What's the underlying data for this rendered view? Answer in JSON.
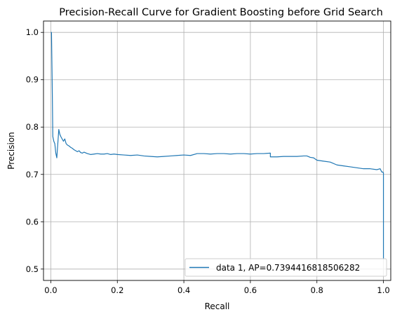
{
  "chart_data": {
    "type": "line",
    "title": "Precision-Recall Curve for Gradient Boosting before Grid Search",
    "xlabel": "Recall",
    "ylabel": "Precision",
    "xlim": [
      -0.022,
      1.022
    ],
    "ylim": [
      0.476,
      1.024
    ],
    "grid": true,
    "legend_position": "bottom-right",
    "x_ticks": [
      0.0,
      0.2,
      0.4,
      0.6,
      0.8,
      1.0
    ],
    "x_tick_labels": [
      "0.0",
      "0.2",
      "0.4",
      "0.6",
      "0.8",
      "1.0"
    ],
    "y_ticks": [
      0.5,
      0.6,
      0.7,
      0.8,
      0.9,
      1.0
    ],
    "y_tick_labels": [
      "0.5",
      "0.6",
      "0.7",
      "0.8",
      "0.9",
      "1.0"
    ],
    "colors": {
      "series": "#1f77b4",
      "grid": "#b0b0b0"
    },
    "series": [
      {
        "name": "data 1, AP=0.7394416818506282",
        "x": [
          0.0,
          0.002,
          0.004,
          0.006,
          0.009,
          0.012,
          0.015,
          0.018,
          0.021,
          0.024,
          0.027,
          0.03,
          0.034,
          0.038,
          0.042,
          0.046,
          0.05,
          0.055,
          0.06,
          0.065,
          0.07,
          0.075,
          0.08,
          0.085,
          0.09,
          0.095,
          0.1,
          0.11,
          0.12,
          0.13,
          0.14,
          0.15,
          0.16,
          0.17,
          0.18,
          0.19,
          0.2,
          0.22,
          0.24,
          0.26,
          0.28,
          0.3,
          0.32,
          0.34,
          0.36,
          0.38,
          0.4,
          0.42,
          0.44,
          0.46,
          0.48,
          0.5,
          0.52,
          0.54,
          0.56,
          0.58,
          0.6,
          0.62,
          0.64,
          0.66,
          0.66,
          0.68,
          0.7,
          0.72,
          0.74,
          0.76,
          0.77,
          0.78,
          0.79,
          0.8,
          0.82,
          0.84,
          0.86,
          0.88,
          0.9,
          0.92,
          0.94,
          0.96,
          0.98,
          0.99,
          0.995,
          0.998,
          1.0,
          1.0
        ],
        "y": [
          1.0,
          1.0,
          0.9,
          0.78,
          0.77,
          0.765,
          0.745,
          0.735,
          0.765,
          0.795,
          0.785,
          0.78,
          0.775,
          0.77,
          0.775,
          0.765,
          0.762,
          0.76,
          0.757,
          0.755,
          0.752,
          0.75,
          0.748,
          0.75,
          0.746,
          0.745,
          0.747,
          0.744,
          0.742,
          0.743,
          0.744,
          0.743,
          0.743,
          0.744,
          0.742,
          0.743,
          0.742,
          0.741,
          0.74,
          0.741,
          0.739,
          0.738,
          0.737,
          0.738,
          0.739,
          0.74,
          0.741,
          0.74,
          0.744,
          0.744,
          0.743,
          0.744,
          0.744,
          0.743,
          0.744,
          0.744,
          0.743,
          0.744,
          0.744,
          0.745,
          0.737,
          0.737,
          0.738,
          0.738,
          0.738,
          0.739,
          0.739,
          0.736,
          0.735,
          0.73,
          0.728,
          0.726,
          0.72,
          0.718,
          0.716,
          0.714,
          0.712,
          0.712,
          0.71,
          0.712,
          0.705,
          0.705,
          0.703,
          0.52
        ]
      }
    ]
  }
}
